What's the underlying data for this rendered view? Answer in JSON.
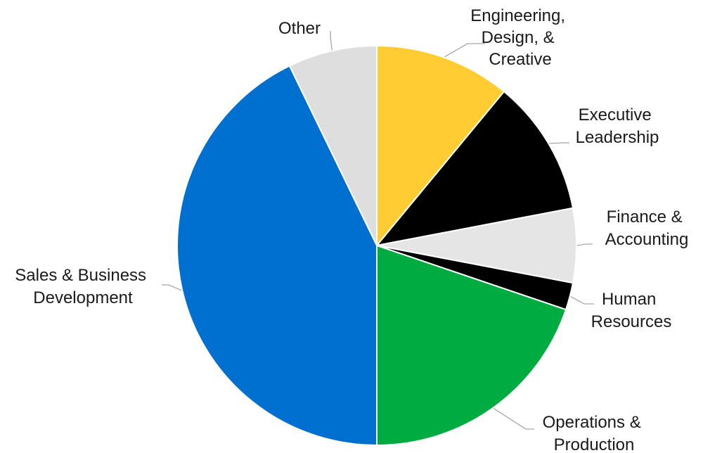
{
  "chart_data": {
    "type": "pie",
    "start_angle_deg": 0,
    "direction": "clockwise",
    "legend": "none",
    "slices": [
      {
        "label_lines": [
          "Engineering,",
          "Design, &",
          "Creative"
        ],
        "value": 11.0,
        "color": "#ffcd33"
      },
      {
        "label_lines": [
          "Executive",
          "Leadership"
        ],
        "value": 11.0,
        "color": "#000000"
      },
      {
        "label_lines": [
          "Finance &",
          "Accounting"
        ],
        "value": 6.0,
        "color": "#e5e5e5"
      },
      {
        "label_lines": [
          "Human",
          "Resources"
        ],
        "value": 2.2,
        "color": "#000000"
      },
      {
        "label_lines": [
          "Operations &",
          "Production"
        ],
        "value": 19.8,
        "color": "#00ac41"
      },
      {
        "label_lines": [
          "Sales & Business",
          "Development"
        ],
        "value": 42.8,
        "color": "#0070d0"
      },
      {
        "label_lines": [
          "Other"
        ],
        "value": 7.2,
        "color": "#dedede"
      }
    ]
  }
}
